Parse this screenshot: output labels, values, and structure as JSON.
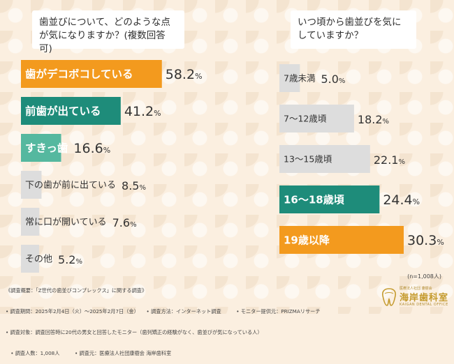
{
  "questions": {
    "left": "歯並びについて、どのような点が気になりますか？(複数回答可)",
    "right": "いつ頃から歯並びを気にしていますか？"
  },
  "colors": {
    "orange": "#f39a1e",
    "teal": "#1e8c7a",
    "light_teal": "#55b89f",
    "gray": "#dddddd",
    "highlight_text": "#ffffff",
    "normal_text": "#333333",
    "pct_text": "#333333"
  },
  "chart_data": [
    {
      "type": "bar",
      "orientation": "horizontal",
      "title": "歯並びについて、どのような点が気になりますか？(複数回答可)",
      "categories": [
        "歯がデコボコしている",
        "前歯が出ている",
        "すきっ歯",
        "下の歯が前に出ている",
        "常に口が開いている",
        "その他"
      ],
      "values": [
        58.2,
        41.2,
        16.6,
        8.5,
        7.6,
        5.2
      ],
      "value_labels": [
        "58.2%",
        "41.2%",
        "16.6%",
        "8.5%",
        "7.6%",
        "5.2%"
      ],
      "styles": [
        "orange",
        "teal",
        "light_teal",
        "gray",
        "gray",
        "gray"
      ],
      "unit": "%",
      "xlim": [
        0,
        60
      ]
    },
    {
      "type": "bar",
      "orientation": "horizontal",
      "title": "いつ頃から歯並びを気にしていますか？",
      "categories": [
        "7歳未満",
        "7〜12歳頃",
        "13〜15歳頃",
        "16〜18歳頃",
        "19歳以降"
      ],
      "values": [
        5.0,
        18.2,
        22.1,
        24.4,
        30.3
      ],
      "value_labels": [
        "5.0%",
        "18.2%",
        "22.1%",
        "24.4%",
        "30.3%"
      ],
      "styles": [
        "gray",
        "gray",
        "gray",
        "teal",
        "orange"
      ],
      "unit": "%",
      "xlim": [
        0,
        30.3
      ],
      "sample_note": "(n=1,008人)"
    }
  ],
  "survey_notes": [
    "《調査概要：「Z世代の歯並びコンプレックス」に関する調査》",
    "• 調査期間：2025年2月4日（火）〜2025年2月7日（金）　　• 調査方法：インターネット調査　　　• モニター提供元：PRIZMAリサーチ",
    "• 調査対象：調査回答時に20代の男女と回答したモニター（歯列矯正の経験がなく、歯並びが気になっている人）",
    "　• 調査人数：1,008人　　　• 調査元：医療法人社団康樹会 海岸歯科室"
  ],
  "logo": {
    "subtitle": "医療法人社団 康樹会",
    "name": "海岸歯科室",
    "english": "KAIGAN DENTAL OFFICE"
  }
}
